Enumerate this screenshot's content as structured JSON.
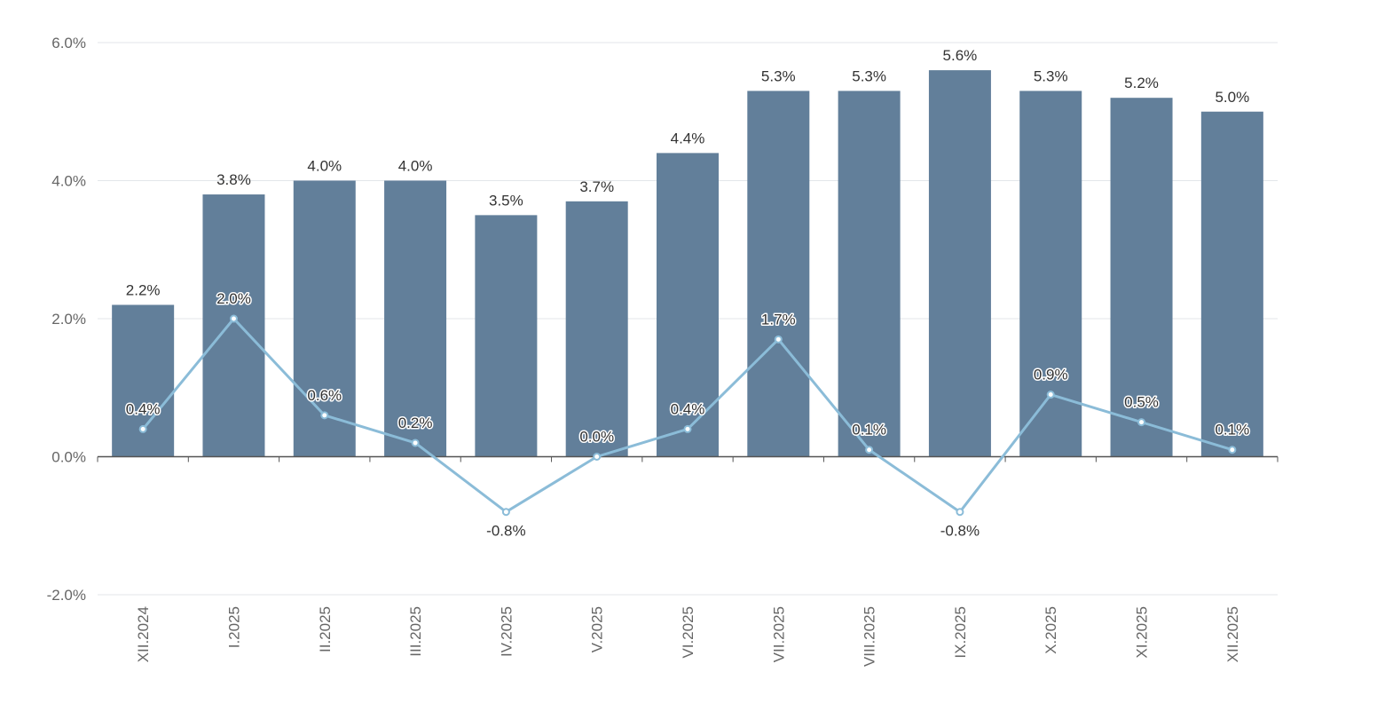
{
  "chart_data": {
    "type": "bar",
    "title": "",
    "xlabel": "",
    "ylabel": "",
    "ylim": [
      -2.0,
      6.0
    ],
    "yticks": [
      "-2.0%",
      "0.0%",
      "2.0%",
      "4.0%",
      "6.0%"
    ],
    "ytick_values": [
      -2.0,
      0.0,
      2.0,
      4.0,
      6.0
    ],
    "grid": true,
    "categories": [
      "XII.2024",
      "I.2025",
      "II.2025",
      "III.2025",
      "IV.2025",
      "V.2025",
      "VI.2025",
      "VII.2025",
      "VIII.2025",
      "IX.2025",
      "X.2025",
      "XI.2025",
      "XII.2025"
    ],
    "series": [
      {
        "name": "bars",
        "kind": "bar",
        "color": "#627f9a",
        "values": [
          2.2,
          3.8,
          4.0,
          4.0,
          3.5,
          3.7,
          4.4,
          5.3,
          5.3,
          5.6,
          5.3,
          5.2,
          5.0
        ],
        "labels": [
          "2.2%",
          "3.8%",
          "4.0%",
          "4.0%",
          "3.5%",
          "3.7%",
          "4.4%",
          "5.3%",
          "5.3%",
          "5.6%",
          "5.3%",
          "5.2%",
          "5.0%"
        ]
      },
      {
        "name": "line",
        "kind": "line",
        "color": "#8bbcd8",
        "values": [
          0.4,
          2.0,
          0.6,
          0.2,
          -0.8,
          0.0,
          0.4,
          1.7,
          0.1,
          -0.8,
          0.9,
          0.5,
          0.1
        ],
        "labels": [
          "0.4%",
          "2.0%",
          "0.6%",
          "0.2%",
          "-0.8%",
          "0.0%",
          "0.4%",
          "1.7%",
          "0.1%",
          "-0.8%",
          "0.9%",
          "0.5%",
          "0.1%"
        ]
      }
    ]
  }
}
